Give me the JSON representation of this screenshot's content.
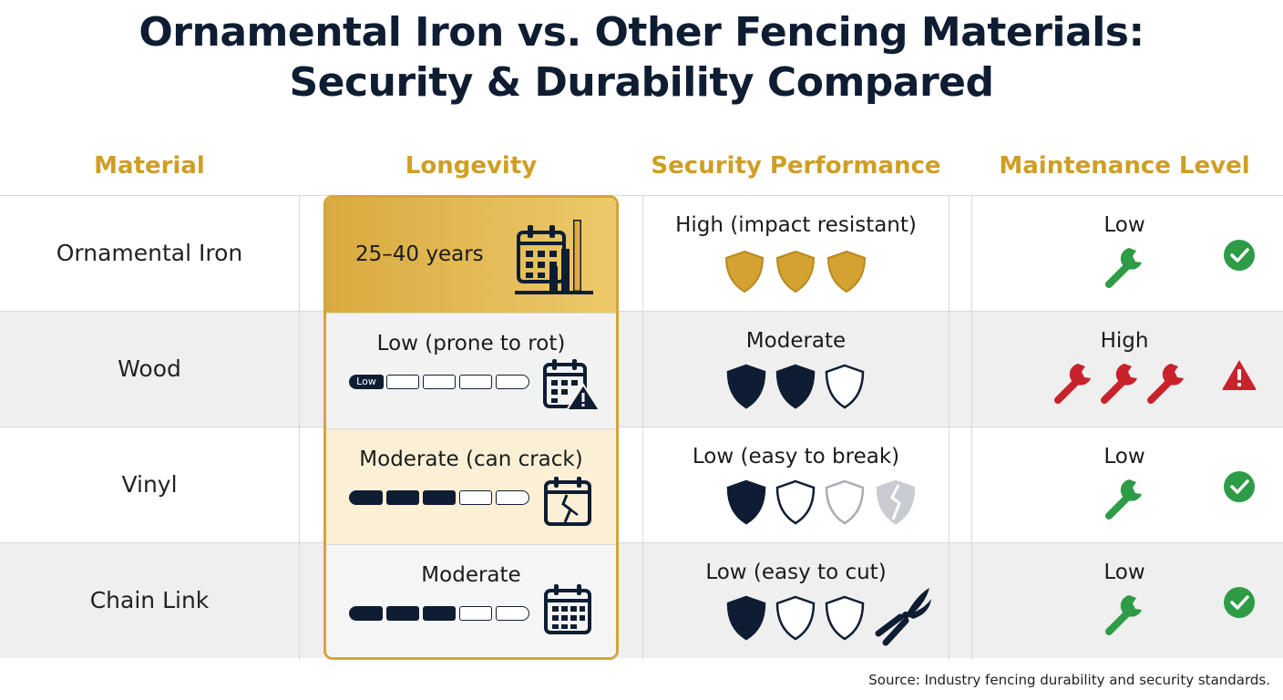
{
  "title": {
    "line1": "Ornamental Iron vs. Other Fencing Materials:",
    "line2": "Security & Durability Compared"
  },
  "headers": {
    "material": "Material",
    "longevity": "Longevity",
    "security": "Security Performance",
    "maintenance": "Maintenance Level"
  },
  "rows": [
    {
      "material": "Ornamental Iron",
      "longevity": "25–40 years",
      "longevity_bar_filled": null,
      "security": "High (impact resistant)",
      "security_shields_filled": 3,
      "maintenance": "Low",
      "maintenance_status": "ok"
    },
    {
      "material": "Wood",
      "longevity": "Low (prone to rot)",
      "longevity_bar_label": "Low",
      "longevity_bar_filled": 1,
      "security": "Moderate",
      "security_shields_filled": 2,
      "maintenance": "High",
      "maintenance_status": "warning"
    },
    {
      "material": "Vinyl",
      "longevity": "Moderate (can crack)",
      "longevity_bar_filled": 3,
      "security": "Low (easy to break)",
      "security_shields_filled": 1,
      "maintenance": "Low",
      "maintenance_status": "ok"
    },
    {
      "material": "Chain Link",
      "longevity": "Moderate",
      "longevity_bar_filled": 3,
      "security": "Low (easy to cut)",
      "security_shields_filled": 1,
      "maintenance": "Low",
      "maintenance_status": "ok"
    }
  ],
  "source": "Source: Industry fencing durability and security standards.",
  "colors": {
    "navy": "#0f1d33",
    "gold": "#cf9e25",
    "green": "#2e9b46",
    "red": "#c8232c"
  }
}
